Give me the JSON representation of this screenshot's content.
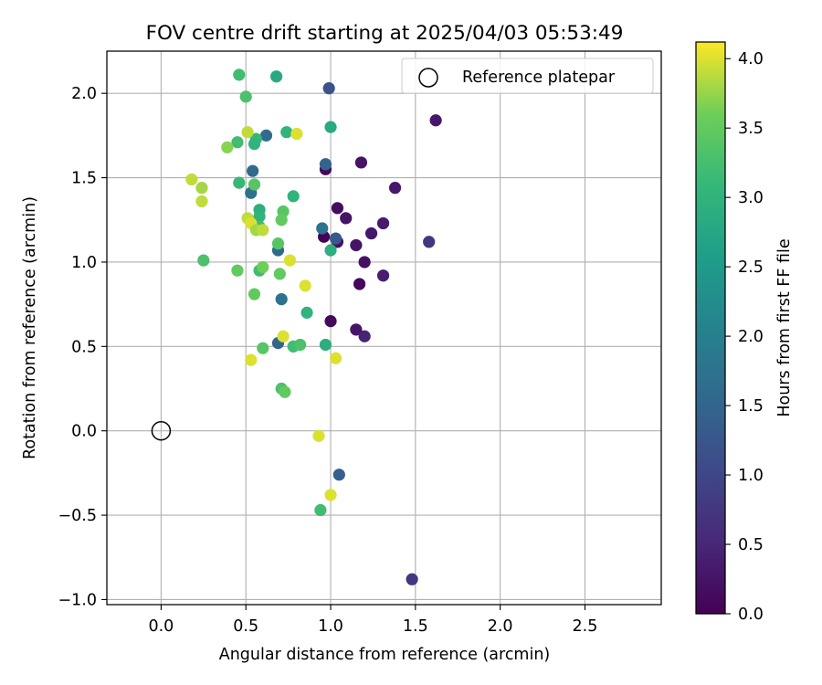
{
  "chart_data": {
    "type": "scatter",
    "title": "FOV centre drift starting at 2025/04/03 05:53:49",
    "xlabel": "Angular distance from reference (arcmin)",
    "ylabel": "Rotation from reference (arcmin)",
    "xlim": [
      -0.32,
      2.95
    ],
    "ylim": [
      -1.03,
      2.25
    ],
    "xticks": [
      0.0,
      0.5,
      1.0,
      1.5,
      2.0,
      2.5
    ],
    "xtick_labels": [
      "0.0",
      "0.5",
      "1.0",
      "1.5",
      "2.0",
      "2.5"
    ],
    "yticks": [
      -1.0,
      -0.5,
      0.0,
      0.5,
      1.0,
      1.5,
      2.0
    ],
    "ytick_labels": [
      "−1.0",
      "−0.5",
      "0.0",
      "0.5",
      "1.0",
      "1.5",
      "2.0"
    ],
    "grid": true,
    "legend": {
      "placement": "top-right",
      "entries": [
        "Reference platepar"
      ]
    },
    "reference_point": {
      "x": 0.0,
      "y": 0.0,
      "marker": "open-circle"
    },
    "colorbar": {
      "label": "Hours from first FF file",
      "colormap": "viridis",
      "range": [
        0.0,
        4.12
      ],
      "ticks": [
        0.0,
        0.5,
        1.0,
        1.5,
        2.0,
        2.5,
        3.0,
        3.5,
        4.0
      ],
      "tick_labels": [
        "0.0",
        "0.5",
        "1.0",
        "1.5",
        "2.0",
        "2.5",
        "3.0",
        "3.5",
        "4.0"
      ]
    },
    "points": [
      {
        "x": 1.62,
        "y": 1.84,
        "hours": 0.3
      },
      {
        "x": 0.97,
        "y": 1.55,
        "hours": 0.1
      },
      {
        "x": 1.18,
        "y": 1.59,
        "hours": 0.25
      },
      {
        "x": 1.38,
        "y": 1.44,
        "hours": 0.3
      },
      {
        "x": 1.04,
        "y": 1.32,
        "hours": 0.15
      },
      {
        "x": 1.09,
        "y": 1.26,
        "hours": 0.25
      },
      {
        "x": 1.31,
        "y": 1.23,
        "hours": 0.35
      },
      {
        "x": 1.24,
        "y": 1.17,
        "hours": 0.3
      },
      {
        "x": 0.96,
        "y": 1.15,
        "hours": 0.05
      },
      {
        "x": 1.04,
        "y": 1.12,
        "hours": 0.2
      },
      {
        "x": 1.15,
        "y": 1.1,
        "hours": 0.25
      },
      {
        "x": 1.2,
        "y": 1.0,
        "hours": 0.2
      },
      {
        "x": 1.31,
        "y": 0.92,
        "hours": 0.4
      },
      {
        "x": 1.17,
        "y": 0.87,
        "hours": 0.1
      },
      {
        "x": 1.0,
        "y": 0.65,
        "hours": 0.1
      },
      {
        "x": 1.15,
        "y": 0.6,
        "hours": 0.25
      },
      {
        "x": 1.2,
        "y": 0.56,
        "hours": 0.45
      },
      {
        "x": 1.58,
        "y": 1.12,
        "hours": 0.75
      },
      {
        "x": 1.48,
        "y": -0.88,
        "hours": 0.75
      },
      {
        "x": 0.99,
        "y": 2.03,
        "hours": 1.2
      },
      {
        "x": 0.62,
        "y": 1.75,
        "hours": 1.6
      },
      {
        "x": 0.97,
        "y": 1.58,
        "hours": 1.5
      },
      {
        "x": 0.54,
        "y": 1.54,
        "hours": 1.6
      },
      {
        "x": 0.53,
        "y": 1.41,
        "hours": 1.7
      },
      {
        "x": 0.95,
        "y": 1.2,
        "hours": 1.75
      },
      {
        "x": 1.03,
        "y": 1.14,
        "hours": 1.3
      },
      {
        "x": 0.69,
        "y": 1.07,
        "hours": 1.6
      },
      {
        "x": 0.71,
        "y": 0.78,
        "hours": 1.75
      },
      {
        "x": 0.69,
        "y": 0.52,
        "hours": 1.5
      },
      {
        "x": 1.05,
        "y": -0.26,
        "hours": 1.4
      },
      {
        "x": 0.46,
        "y": 2.11,
        "hours": 3.2
      },
      {
        "x": 0.68,
        "y": 2.1,
        "hours": 2.8
      },
      {
        "x": 0.5,
        "y": 1.98,
        "hours": 3.3
      },
      {
        "x": 1.0,
        "y": 1.8,
        "hours": 2.8
      },
      {
        "x": 0.74,
        "y": 1.77,
        "hours": 3.0
      },
      {
        "x": 0.56,
        "y": 1.73,
        "hours": 3.1
      },
      {
        "x": 0.45,
        "y": 1.71,
        "hours": 3.2
      },
      {
        "x": 0.55,
        "y": 1.7,
        "hours": 3.0
      },
      {
        "x": 0.46,
        "y": 1.47,
        "hours": 3.1
      },
      {
        "x": 0.55,
        "y": 1.46,
        "hours": 3.4
      },
      {
        "x": 0.78,
        "y": 1.39,
        "hours": 3.0
      },
      {
        "x": 0.58,
        "y": 1.31,
        "hours": 2.9
      },
      {
        "x": 0.72,
        "y": 1.3,
        "hours": 3.4
      },
      {
        "x": 0.58,
        "y": 1.27,
        "hours": 3.0
      },
      {
        "x": 0.71,
        "y": 1.25,
        "hours": 3.5
      },
      {
        "x": 0.58,
        "y": 1.21,
        "hours": 3.2
      },
      {
        "x": 0.69,
        "y": 1.11,
        "hours": 3.4
      },
      {
        "x": 1.0,
        "y": 1.07,
        "hours": 2.9
      },
      {
        "x": 0.25,
        "y": 1.01,
        "hours": 3.3
      },
      {
        "x": 0.45,
        "y": 0.95,
        "hours": 3.5
      },
      {
        "x": 0.58,
        "y": 0.95,
        "hours": 3.2
      },
      {
        "x": 0.6,
        "y": 0.97,
        "hours": 3.6
      },
      {
        "x": 0.7,
        "y": 0.93,
        "hours": 3.5
      },
      {
        "x": 0.55,
        "y": 0.81,
        "hours": 3.5
      },
      {
        "x": 0.86,
        "y": 0.7,
        "hours": 3.0
      },
      {
        "x": 0.6,
        "y": 0.49,
        "hours": 3.4
      },
      {
        "x": 0.78,
        "y": 0.5,
        "hours": 3.2
      },
      {
        "x": 0.82,
        "y": 0.51,
        "hours": 3.3
      },
      {
        "x": 0.97,
        "y": 0.51,
        "hours": 2.9
      },
      {
        "x": 0.71,
        "y": 0.25,
        "hours": 3.3
      },
      {
        "x": 0.73,
        "y": 0.23,
        "hours": 3.5
      },
      {
        "x": 0.94,
        "y": -0.47,
        "hours": 3.2
      },
      {
        "x": 0.51,
        "y": 1.77,
        "hours": 3.9
      },
      {
        "x": 0.8,
        "y": 1.76,
        "hours": 4.0
      },
      {
        "x": 0.39,
        "y": 1.68,
        "hours": 3.7
      },
      {
        "x": 0.18,
        "y": 1.49,
        "hours": 3.9
      },
      {
        "x": 0.24,
        "y": 1.44,
        "hours": 3.8
      },
      {
        "x": 0.24,
        "y": 1.36,
        "hours": 3.9
      },
      {
        "x": 0.51,
        "y": 1.26,
        "hours": 3.9
      },
      {
        "x": 0.53,
        "y": 1.23,
        "hours": 4.0
      },
      {
        "x": 0.56,
        "y": 1.19,
        "hours": 3.8
      },
      {
        "x": 0.6,
        "y": 1.19,
        "hours": 3.9
      },
      {
        "x": 0.76,
        "y": 1.01,
        "hours": 4.0
      },
      {
        "x": 0.85,
        "y": 0.86,
        "hours": 4.0
      },
      {
        "x": 0.72,
        "y": 0.56,
        "hours": 4.0
      },
      {
        "x": 0.53,
        "y": 0.42,
        "hours": 4.0
      },
      {
        "x": 1.03,
        "y": 0.43,
        "hours": 4.0
      },
      {
        "x": 0.93,
        "y": -0.03,
        "hours": 4.0
      },
      {
        "x": 1.0,
        "y": -0.38,
        "hours": 4.0
      }
    ]
  }
}
